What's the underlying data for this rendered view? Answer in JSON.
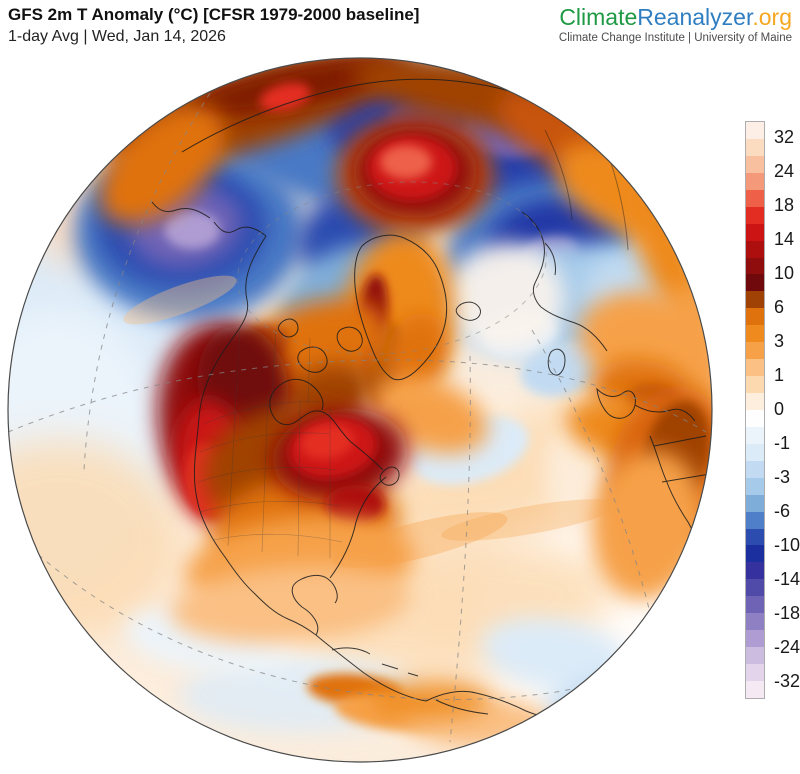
{
  "header": {
    "title": "GFS 2m T Anomaly (°C) [CFSR 1979-2000 baseline]",
    "subtitle": "1-day Avg | Wed, Jan 14, 2026"
  },
  "logo": {
    "part1": "Climate",
    "part2": "Reanalyzer",
    "part3": ".org",
    "tagline": "Climate Change Institute | University of Maine",
    "colors": {
      "part1": "#1f9a44",
      "part2": "#2f7ec1",
      "part3": "#f6a61f"
    }
  },
  "colorbar": {
    "unit": "°C",
    "ticks": [
      "32",
      "24",
      "18",
      "14",
      "10",
      "6",
      "3",
      "1",
      "0",
      "-1",
      "-3",
      "-6",
      "-10",
      "-14",
      "-18",
      "-24",
      "-32"
    ],
    "colors": [
      "#fdeee6",
      "#fbdcc1",
      "#f8c09e",
      "#f4997a",
      "#ee6148",
      "#e42d22",
      "#cd1414",
      "#ad0f0f",
      "#900d0e",
      "#6f090b",
      "#a04206",
      "#e0720e",
      "#ee8a1e",
      "#f6a148",
      "#fac084",
      "#fcd9ae",
      "#fdeedd",
      "#fefefe",
      "#ecf4fb",
      "#dcebf8",
      "#c2dbf2",
      "#a5caea",
      "#7fadd9",
      "#4f7fc8",
      "#2c4cb0",
      "#1c2f9e",
      "#35319f",
      "#504aa9",
      "#6f63b6",
      "#8f80c4",
      "#ae9cd2",
      "#cbbce0",
      "#e3d4eb",
      "#f5e9f3"
    ]
  },
  "map": {
    "type": "global temperature anomaly map, orthographic globe over North Atlantic / Arctic",
    "anomaly_highlights": [
      {
        "region": "western North America",
        "sign": "warm",
        "approx_c": "+10 to +16"
      },
      {
        "region": "eastern Canada / Quebec",
        "sign": "warm",
        "approx_c": "+14 to +18"
      },
      {
        "region": "central US plains",
        "sign": "warm",
        "approx_c": "+6 to +10"
      },
      {
        "region": "Kara Sea / Novaya Zemlya",
        "sign": "warm",
        "approx_c": "+16 to +20"
      },
      {
        "region": "Bering Sea / Chukotka",
        "sign": "cold",
        "approx_c": "-14 to -20"
      },
      {
        "region": "central Siberia",
        "sign": "cold",
        "approx_c": "-10 to -16"
      },
      {
        "region": "Scandinavia / NW Russia",
        "sign": "cold",
        "approx_c": "-10 to -14"
      },
      {
        "region": "North Pacific",
        "sign": "cold",
        "approx_c": "-1 to -4"
      },
      {
        "region": "West Africa / Sahara",
        "sign": "warm",
        "approx_c": "+4 to +8"
      },
      {
        "region": "central North Atlantic",
        "sign": "neutral",
        "approx_c": "0 to +2"
      }
    ]
  }
}
